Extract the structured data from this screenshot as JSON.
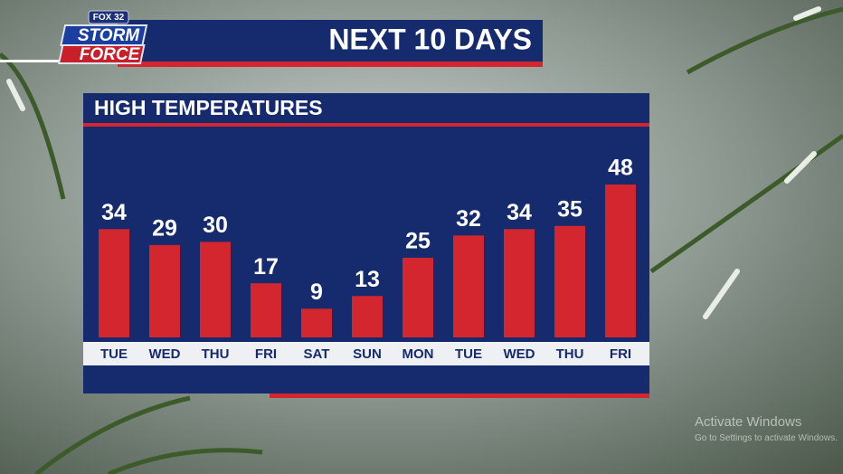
{
  "logo": {
    "network": "FOX 32",
    "line1": "STORM",
    "line2": "FORCE"
  },
  "chart_data": {
    "type": "bar",
    "title": "NEXT 10 DAYS",
    "subtitle": "HIGH TEMPERATURES",
    "categories": [
      "TUE",
      "WED",
      "THU",
      "FRI",
      "SAT",
      "SUN",
      "MON",
      "TUE",
      "WED",
      "THU",
      "FRI"
    ],
    "values": [
      34,
      29,
      30,
      17,
      9,
      13,
      25,
      32,
      34,
      35,
      48
    ],
    "color": "#d3262e"
  },
  "watermark": {
    "line1": "Activate Windows",
    "line2": "Go to Settings to activate Windows."
  }
}
